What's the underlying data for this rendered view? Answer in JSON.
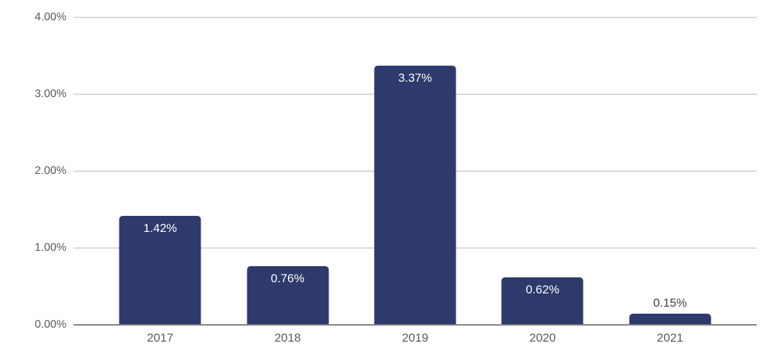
{
  "chart_data": {
    "type": "bar",
    "title": "",
    "xlabel": "",
    "ylabel": "",
    "categories": [
      "2017",
      "2018",
      "2019",
      "2020",
      "2021"
    ],
    "values": [
      1.42,
      0.76,
      3.37,
      0.62,
      0.15
    ],
    "value_labels": [
      "1.42%",
      "0.76%",
      "3.37%",
      "0.62%",
      "0.15%"
    ],
    "ylim": [
      0,
      4
    ],
    "yticks": [
      "0.00%",
      "1.00%",
      "2.00%",
      "3.00%",
      "4.00%"
    ],
    "grid": true,
    "legend": false,
    "colors": {
      "bar": "#2e3a6b",
      "gridline": "#d9d9d9",
      "axis_line": "#7f7f7f",
      "tick_text": "#595959",
      "bar_label_inside": "#ffffff",
      "bar_label_outside": "#404040"
    }
  }
}
